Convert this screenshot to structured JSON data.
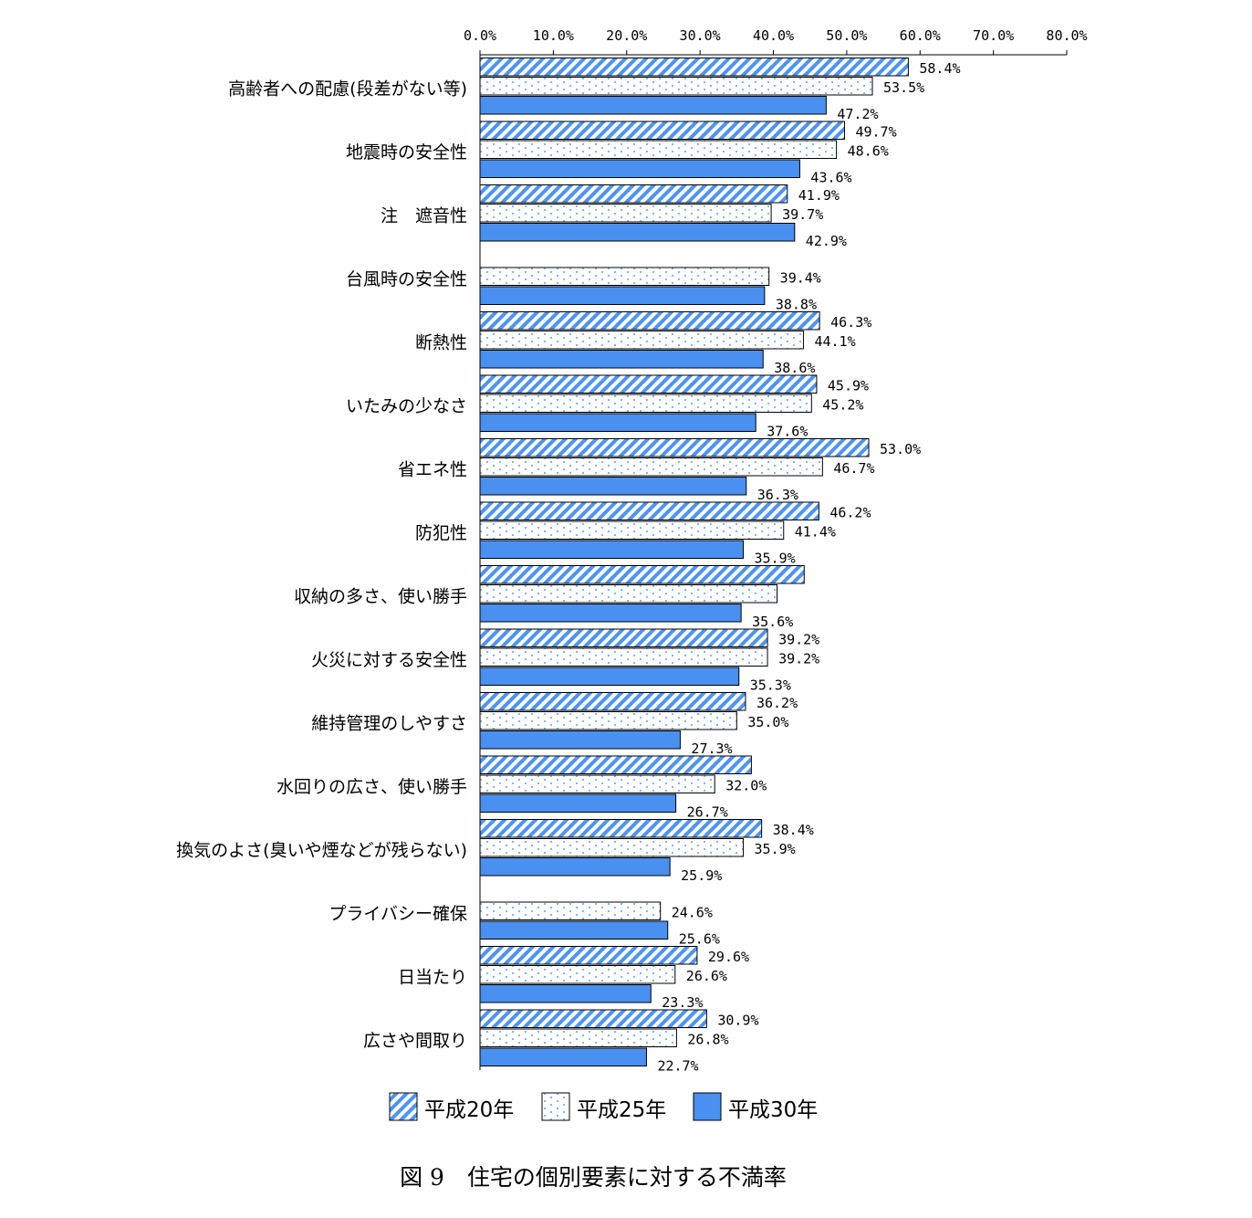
{
  "chart_data": {
    "type": "bar",
    "orientation": "horizontal",
    "caption": "図 9　住宅の個別要素に対する不満率",
    "xlim": [
      0,
      80
    ],
    "ticks": [
      "0.0%",
      "10.0%",
      "20.0%",
      "30.0%",
      "40.0%",
      "50.0%",
      "60.0%",
      "70.0%",
      "80.0%"
    ],
    "tick_values": [
      0,
      10,
      20,
      30,
      40,
      50,
      60,
      70,
      80
    ],
    "legend_position": "bottom",
    "categories": [
      "高齢者への配慮(段差がない等)",
      "地震時の安全性",
      "注　遮音性",
      "台風時の安全性",
      "断熱性",
      "いたみの少なさ",
      "省エネ性",
      "防犯性",
      "収納の多さ、使い勝手",
      "火災に対する安全性",
      "維持管理のしやすさ",
      "水回りの広さ、使い勝手",
      "換気のよさ(臭いや煙などが残らない)",
      "プライバシー確保",
      "日当たり",
      "広さや間取り"
    ],
    "series": [
      {
        "name": "平成20年",
        "pattern": "diagonal",
        "color": "#4d94f2",
        "values": [
          58.4,
          49.7,
          41.9,
          null,
          46.3,
          45.9,
          53.0,
          46.2,
          44.2,
          39.2,
          36.2,
          37.0,
          38.4,
          null,
          29.6,
          30.9
        ],
        "labels": [
          "58.4%",
          "49.7%",
          "41.9%",
          "",
          "46.3%",
          "45.9%",
          "53.0%",
          "46.2%",
          "",
          "39.2%",
          "36.2%",
          "",
          "38.4%",
          "",
          "29.6%",
          "30.9%"
        ]
      },
      {
        "name": "平成25年",
        "pattern": "dotted",
        "color": "#7fb6f5",
        "values": [
          53.5,
          48.6,
          39.7,
          39.4,
          44.1,
          45.2,
          46.7,
          41.4,
          40.5,
          39.2,
          35.0,
          32.0,
          35.9,
          24.6,
          26.6,
          26.8
        ],
        "labels": [
          "53.5%",
          "48.6%",
          "39.7%",
          "39.4%",
          "44.1%",
          "45.2%",
          "46.7%",
          "41.4%",
          "",
          "39.2%",
          "35.0%",
          "32.0%",
          "35.9%",
          "24.6%",
          "26.6%",
          "26.8%"
        ]
      },
      {
        "name": "平成30年",
        "pattern": "solid",
        "color": "#4a90f0",
        "values": [
          47.2,
          43.6,
          42.9,
          38.8,
          38.6,
          37.6,
          36.3,
          35.9,
          35.6,
          35.3,
          27.3,
          26.7,
          25.9,
          25.6,
          23.3,
          22.7
        ],
        "labels": [
          "47.2%",
          "43.6%",
          "42.9%",
          "38.8%",
          "38.6%",
          "37.6%",
          "36.3%",
          "35.9%",
          "35.6%",
          "35.3%",
          "27.3%",
          "26.7%",
          "25.9%",
          "25.6%",
          "23.3%",
          "22.7%"
        ]
      }
    ]
  }
}
